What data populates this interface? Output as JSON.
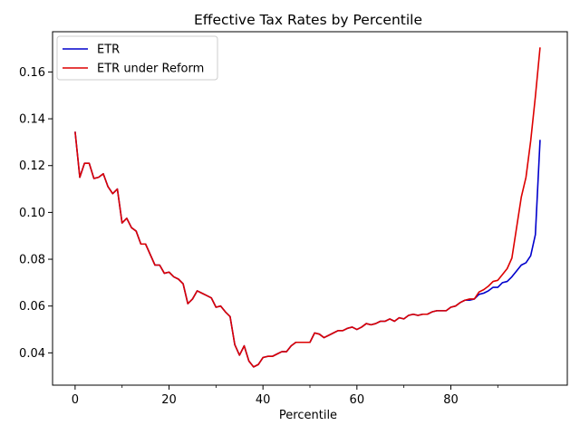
{
  "chart_data": {
    "type": "line",
    "title": "Effective Tax Rates by Percentile",
    "xlabel": "Percentile",
    "ylabel": "",
    "xlim": [
      -4.8,
      104.8
    ],
    "ylim": [
      0.0262,
      0.1772
    ],
    "xticks": [
      0,
      20,
      40,
      60,
      80
    ],
    "xticks_minor": [
      10,
      30,
      50,
      70,
      90
    ],
    "yticks": [
      0.04,
      0.06,
      0.08,
      0.1,
      0.12,
      0.14,
      0.16
    ],
    "ytick_labels": [
      "0.04",
      "0.06",
      "0.08",
      "0.10",
      "0.12",
      "0.14",
      "0.16"
    ],
    "grid": false,
    "legend_position": "upper-left",
    "x": [
      0,
      1,
      2,
      3,
      4,
      5,
      6,
      7,
      8,
      9,
      10,
      11,
      12,
      13,
      14,
      15,
      16,
      17,
      18,
      19,
      20,
      21,
      22,
      23,
      24,
      25,
      26,
      27,
      28,
      29,
      30,
      31,
      32,
      33,
      34,
      35,
      36,
      37,
      38,
      39,
      40,
      41,
      42,
      43,
      44,
      45,
      46,
      47,
      48,
      49,
      50,
      51,
      52,
      53,
      54,
      55,
      56,
      57,
      58,
      59,
      60,
      61,
      62,
      63,
      64,
      65,
      66,
      67,
      68,
      69,
      70,
      71,
      72,
      73,
      74,
      75,
      76,
      77,
      78,
      79,
      80,
      81,
      82,
      83,
      84,
      85,
      86,
      87,
      88,
      89,
      90,
      91,
      92,
      93,
      94,
      95,
      96,
      97,
      98,
      99
    ],
    "series": [
      {
        "name": "ETR",
        "color": "#0000cc",
        "values": [
          0.1345,
          0.115,
          0.121,
          0.121,
          0.1145,
          0.115,
          0.1165,
          0.111,
          0.108,
          0.11,
          0.0955,
          0.0975,
          0.0935,
          0.092,
          0.0865,
          0.0865,
          0.082,
          0.0775,
          0.0775,
          0.074,
          0.0745,
          0.0725,
          0.0715,
          0.0695,
          0.061,
          0.063,
          0.0665,
          0.0655,
          0.0645,
          0.0635,
          0.0595,
          0.06,
          0.0575,
          0.0555,
          0.0435,
          0.039,
          0.043,
          0.0365,
          0.034,
          0.035,
          0.038,
          0.0385,
          0.0385,
          0.0395,
          0.0405,
          0.0405,
          0.043,
          0.0445,
          0.0445,
          0.0445,
          0.0445,
          0.0485,
          0.048,
          0.0465,
          0.0475,
          0.0485,
          0.0495,
          0.0495,
          0.0505,
          0.051,
          0.05,
          0.051,
          0.0525,
          0.052,
          0.0525,
          0.0535,
          0.0535,
          0.0545,
          0.0535,
          0.055,
          0.0545,
          0.056,
          0.0565,
          0.056,
          0.0565,
          0.0565,
          0.0575,
          0.058,
          0.058,
          0.058,
          0.0595,
          0.06,
          0.0615,
          0.0625,
          0.0625,
          0.063,
          0.065,
          0.0655,
          0.0665,
          0.068,
          0.068,
          0.07,
          0.0705,
          0.0725,
          0.075,
          0.0775,
          0.0785,
          0.0815,
          0.0905,
          0.131
        ]
      },
      {
        "name": "ETR under Reform",
        "color": "#dd0000",
        "values": [
          0.1345,
          0.115,
          0.121,
          0.121,
          0.1145,
          0.115,
          0.1165,
          0.111,
          0.108,
          0.11,
          0.0955,
          0.0975,
          0.0935,
          0.092,
          0.0865,
          0.0865,
          0.082,
          0.0775,
          0.0775,
          0.074,
          0.0745,
          0.0725,
          0.0715,
          0.0695,
          0.061,
          0.063,
          0.0665,
          0.0655,
          0.0645,
          0.0635,
          0.0595,
          0.06,
          0.0575,
          0.0555,
          0.0435,
          0.039,
          0.043,
          0.0365,
          0.034,
          0.035,
          0.038,
          0.0385,
          0.0385,
          0.0395,
          0.0405,
          0.0405,
          0.043,
          0.0445,
          0.0445,
          0.0445,
          0.0445,
          0.0485,
          0.048,
          0.0465,
          0.0475,
          0.0485,
          0.0495,
          0.0495,
          0.0505,
          0.051,
          0.05,
          0.051,
          0.0525,
          0.052,
          0.0525,
          0.0535,
          0.0535,
          0.0545,
          0.0535,
          0.055,
          0.0545,
          0.056,
          0.0565,
          0.056,
          0.0565,
          0.0565,
          0.0575,
          0.058,
          0.058,
          0.058,
          0.0595,
          0.06,
          0.0615,
          0.0625,
          0.063,
          0.063,
          0.066,
          0.067,
          0.0685,
          0.0705,
          0.071,
          0.0735,
          0.076,
          0.0805,
          0.0935,
          0.1065,
          0.115,
          0.1305,
          0.1495,
          0.1705
        ]
      }
    ]
  }
}
